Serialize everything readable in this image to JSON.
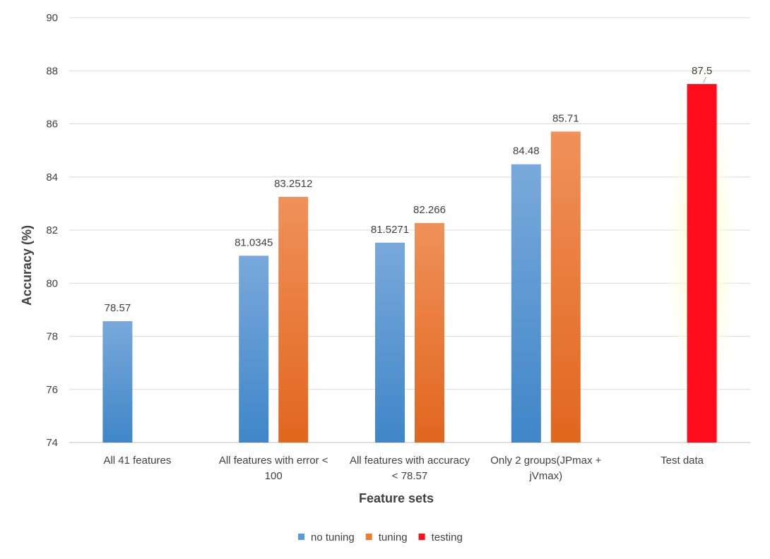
{
  "chart_data": {
    "type": "bar",
    "xlabel": "Feature sets",
    "ylabel": "Accuracy (%)",
    "ylim": [
      74,
      90
    ],
    "yticks": [
      74,
      76,
      78,
      80,
      82,
      84,
      86,
      88,
      90
    ],
    "grid": true,
    "legend_position": "bottom",
    "categories": [
      [
        "All 41 features"
      ],
      [
        "All features with error <",
        "100"
      ],
      [
        "All features with accuracy",
        "< 78.57"
      ],
      [
        "Only 2 groups(JPmax +",
        "jVmax)"
      ],
      [
        "Test data"
      ]
    ],
    "series": [
      {
        "name": "no tuning",
        "color": "#5B9BD5",
        "values": [
          78.57,
          81.0345,
          81.5271,
          84.48,
          null
        ],
        "labels": [
          "78.57",
          "81.0345",
          "81.5271",
          "84.48",
          null
        ]
      },
      {
        "name": "tuning",
        "color": "#ED7D31",
        "values": [
          null,
          83.2512,
          82.266,
          85.71,
          null
        ],
        "labels": [
          null,
          "83.2512",
          "82.266",
          "85.71",
          null
        ]
      },
      {
        "name": "testing",
        "color": "#FF0D1D",
        "values": [
          null,
          null,
          null,
          null,
          87.5
        ],
        "labels": [
          null,
          null,
          null,
          null,
          "87.5"
        ]
      }
    ]
  }
}
